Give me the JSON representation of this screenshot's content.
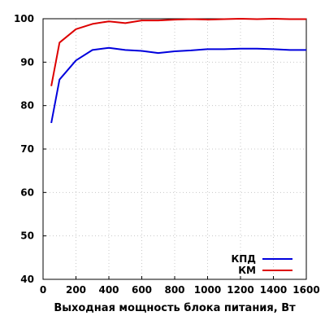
{
  "chart_data": {
    "type": "line",
    "title": "",
    "xlabel": "Выходная мощность блока питания, Вт",
    "ylabel": "",
    "xlim": [
      0,
      1600
    ],
    "ylim": [
      40,
      100
    ],
    "x_ticks": [
      0,
      200,
      400,
      600,
      800,
      1000,
      1200,
      1400,
      1600
    ],
    "y_ticks": [
      40,
      50,
      60,
      70,
      80,
      90,
      100
    ],
    "grid": true,
    "legend_position": "bottom-right",
    "series": [
      {
        "name": "КПД",
        "color": "#0000dd",
        "x": [
          50,
          100,
          200,
          300,
          400,
          500,
          600,
          700,
          800,
          900,
          1000,
          1100,
          1200,
          1300,
          1400,
          1500,
          1600
        ],
        "y": [
          76,
          86,
          90.4,
          92.8,
          93.3,
          92.8,
          92.6,
          92.1,
          92.5,
          92.7,
          93.0,
          93.0,
          93.1,
          93.1,
          93.0,
          92.8,
          92.8
        ]
      },
      {
        "name": "КМ",
        "color": "#dd0000",
        "x": [
          50,
          100,
          200,
          300,
          400,
          500,
          600,
          700,
          800,
          900,
          1000,
          1100,
          1200,
          1300,
          1400,
          1500,
          1600
        ],
        "y": [
          84.5,
          94.5,
          97.6,
          98.8,
          99.4,
          99.0,
          99.6,
          99.6,
          99.8,
          99.9,
          99.8,
          99.9,
          100.0,
          99.9,
          100.0,
          99.9,
          99.9
        ]
      }
    ]
  }
}
